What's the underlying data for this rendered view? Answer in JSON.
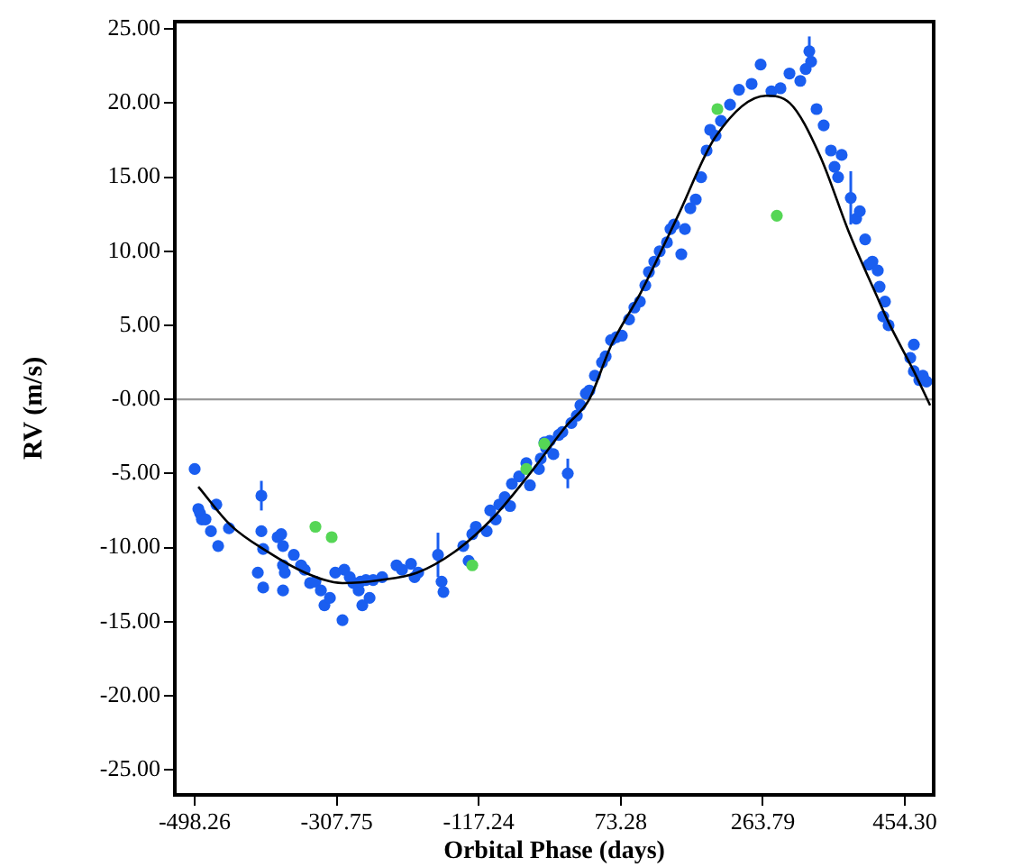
{
  "chart_data": {
    "type": "scatter",
    "xlabel": "Orbital Phase (days)",
    "ylabel": "RV (m/s)",
    "xlim": [
      -524.9,
      493.0
    ],
    "ylim": [
      -26.7,
      25.5
    ],
    "xticks": [
      -498.26,
      -307.75,
      -117.24,
      73.28,
      263.79,
      {
        "value": 454.3,
        "label": "454.30"
      }
    ],
    "yticks": [
      {
        "value": -25,
        "label": "-25.00"
      },
      {
        "value": -20,
        "label": "-20.00"
      },
      {
        "value": -15,
        "label": "-15.00"
      },
      {
        "value": -10,
        "label": "-10.00"
      },
      {
        "value": -5,
        "label": "-5.00"
      },
      {
        "value": 0,
        "label": "-0.00"
      },
      {
        "value": 5,
        "label": "5.00"
      },
      {
        "value": 10,
        "label": "10.00"
      },
      {
        "value": 15,
        "label": "15.00"
      },
      {
        "value": 20,
        "label": "20.00"
      },
      {
        "value": 25,
        "label": "25.00"
      }
    ],
    "grid": false,
    "legend": false,
    "marker": "circle",
    "ref_lines": [
      {
        "axis": "y",
        "value": 0,
        "color": "#999999"
      }
    ],
    "series": [
      {
        "type": "scatter",
        "color": "#1a5ef0",
        "x": [
          -498.3,
          -491.0,
          -488.6,
          -493.4,
          -476.5,
          -483.8,
          -469.2,
          -466.8,
          -452.3,
          -408.8,
          -406.4,
          -408.8,
          -406.4,
          -413.6,
          -387.0,
          -379.8,
          -382.2,
          -379.8,
          -379.8,
          -377.4,
          -365.3,
          -350.8,
          -355.6,
          -343.5,
          -336.3,
          -329.0,
          -324.2,
          -316.9,
          -309.7,
          -300.0,
          -297.6,
          -290.3,
          -285.5,
          -278.3,
          -275.8,
          -273.4,
          -268.6,
          -263.7,
          -258.9,
          -246.8,
          -227.5,
          -220.2,
          -208.1,
          -198.5,
          -203.3,
          -171.9,
          -167.1,
          -164.6,
          -138.0,
          -130.8,
          -121.1,
          -125.9,
          -106.6,
          -101.8,
          -94.5,
          -89.7,
          -82.4,
          -75.2,
          -72.8,
          -63.1,
          -53.4,
          -48.6,
          -36.5,
          -34.1,
          -29.2,
          -26.8,
          -22.0,
          -17.1,
          -9.9,
          -5.1,
          2.2,
          7.0,
          14.3,
          19.1,
          26.4,
          31.2,
          38.5,
          48.1,
          53.0,
          60.2,
          67.5,
          74.7,
          84.4,
          91.6,
          98.9,
          106.2,
          111.0,
          118.3,
          125.5,
          135.2,
          140.0,
          144.8,
          154.5,
          159.3,
          166.6,
          173.8,
          181.1,
          188.4,
          193.2,
          200.5,
          207.7,
          219.8,
          231.9,
          248.8,
          260.9,
          275.4,
          287.5,
          299.6,
          314.1,
          321.3,
          328.6,
          326.2,
          335.9,
          345.5,
          355.2,
          360.0,
          364.8,
          369.6,
          381.8,
          389.0,
          393.9,
          401.1,
          405.9,
          410.8,
          418.0,
          420.4,
          427.7,
          425.3,
          432.5,
          461.6,
          466.4,
          473.7,
          478.5,
          483.3,
          466.4
        ],
        "values": [
          -4.7,
          -7.7,
          -8.1,
          -7.4,
          -8.9,
          -8.1,
          -7.1,
          -9.9,
          -8.7,
          -6.5,
          -10.1,
          -8.9,
          -12.7,
          -11.7,
          -9.3,
          -9.9,
          -9.1,
          -11.2,
          -12.9,
          -11.7,
          -10.5,
          -11.5,
          -11.2,
          -12.4,
          -12.3,
          -12.9,
          -13.9,
          -13.4,
          -11.7,
          -14.9,
          -11.5,
          -12.0,
          -12.4,
          -12.9,
          -12.3,
          -13.9,
          -12.2,
          -13.4,
          -12.2,
          -12.0,
          -11.2,
          -11.5,
          -11.1,
          -11.7,
          -12.0,
          -10.5,
          -12.3,
          -13.0,
          -9.9,
          -10.9,
          -8.6,
          -9.1,
          -8.9,
          -7.5,
          -8.1,
          -7.1,
          -6.6,
          -7.2,
          -5.7,
          -5.2,
          -4.3,
          -5.8,
          -4.7,
          -4.0,
          -2.9,
          -3.3,
          -2.8,
          -3.7,
          -2.4,
          -2.2,
          -5.0,
          -1.6,
          -1.1,
          -0.4,
          0.4,
          0.6,
          1.6,
          2.5,
          2.9,
          4.0,
          4.2,
          4.3,
          5.4,
          6.2,
          6.6,
          7.7,
          8.6,
          9.3,
          10.0,
          10.6,
          11.5,
          11.8,
          9.8,
          11.5,
          12.9,
          13.5,
          15.0,
          16.8,
          18.2,
          17.8,
          18.8,
          19.9,
          20.9,
          21.3,
          22.6,
          20.8,
          21.0,
          22.0,
          21.5,
          22.3,
          22.8,
          23.5,
          19.6,
          18.5,
          16.8,
          15.7,
          15.0,
          16.5,
          13.6,
          12.2,
          12.7,
          10.8,
          9.1,
          9.3,
          8.7,
          7.6,
          6.6,
          5.6,
          5.0,
          2.8,
          1.9,
          1.3,
          1.6,
          1.2,
          3.7
        ],
        "errors": [
          null,
          null,
          null,
          null,
          null,
          null,
          null,
          null,
          null,
          1.0,
          null,
          null,
          null,
          null,
          null,
          null,
          null,
          null,
          null,
          null,
          null,
          null,
          null,
          null,
          null,
          null,
          null,
          null,
          null,
          null,
          null,
          null,
          null,
          null,
          null,
          null,
          null,
          null,
          null,
          null,
          null,
          null,
          null,
          null,
          null,
          1.5,
          null,
          null,
          null,
          null,
          null,
          null,
          null,
          null,
          null,
          null,
          null,
          null,
          null,
          null,
          null,
          null,
          null,
          null,
          null,
          null,
          null,
          null,
          null,
          null,
          1.0,
          null,
          null,
          null,
          null,
          null,
          null,
          null,
          null,
          null,
          null,
          null,
          null,
          null,
          null,
          null,
          null,
          null,
          null,
          null,
          null,
          null,
          null,
          null,
          null,
          null,
          null,
          null,
          null,
          null,
          null,
          null,
          null,
          null,
          null,
          null,
          null,
          null,
          null,
          null,
          null,
          1.0,
          null,
          null,
          null,
          null,
          null,
          null,
          1.8,
          null,
          null,
          null,
          null,
          null,
          null,
          null,
          null,
          null,
          null,
          null,
          null,
          null,
          null,
          null,
          null
        ]
      },
      {
        "type": "scatter",
        "color": "#55d655",
        "x": [
          -336.3,
          -314.5,
          -125.9,
          -53.4,
          -29.2,
          202.9,
          282.6
        ],
        "values": [
          -8.6,
          -9.3,
          -11.2,
          -4.7,
          -3.0,
          19.6,
          12.4
        ]
      },
      {
        "type": "line",
        "color": "#000000",
        "line_style": "solid",
        "marker": "none",
        "x": [
          -493.4,
          -450,
          -400,
          -350,
          -300,
          -250,
          -200,
          -150,
          -100,
          -50,
          0,
          31,
          60,
          100,
          150,
          200,
          268,
          300,
          340,
          380,
          420,
          432.5,
          466.4,
          488.2
        ],
        "values": [
          -5.9,
          -8.5,
          -10.3,
          -11.7,
          -12.4,
          -12.2,
          -11.7,
          -10.3,
          -8.1,
          -5.1,
          -1.8,
          0,
          3.6,
          7.2,
          12.4,
          17.7,
          20.5,
          20.0,
          16.5,
          11.2,
          6.6,
          5.2,
          1.9,
          -0.4
        ]
      }
    ]
  }
}
